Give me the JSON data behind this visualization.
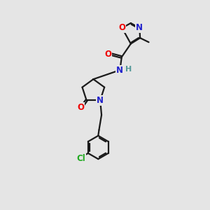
{
  "background_color": "#e5e5e5",
  "bond_color": "#1a1a1a",
  "bond_width": 1.6,
  "atom_colors": {
    "O": "#ee0000",
    "N": "#2222cc",
    "C": "#1a1a1a",
    "Cl": "#22aa22",
    "H": "#559999"
  },
  "font_size": 8.5,
  "figsize": [
    3.0,
    3.0
  ],
  "dpi": 100
}
